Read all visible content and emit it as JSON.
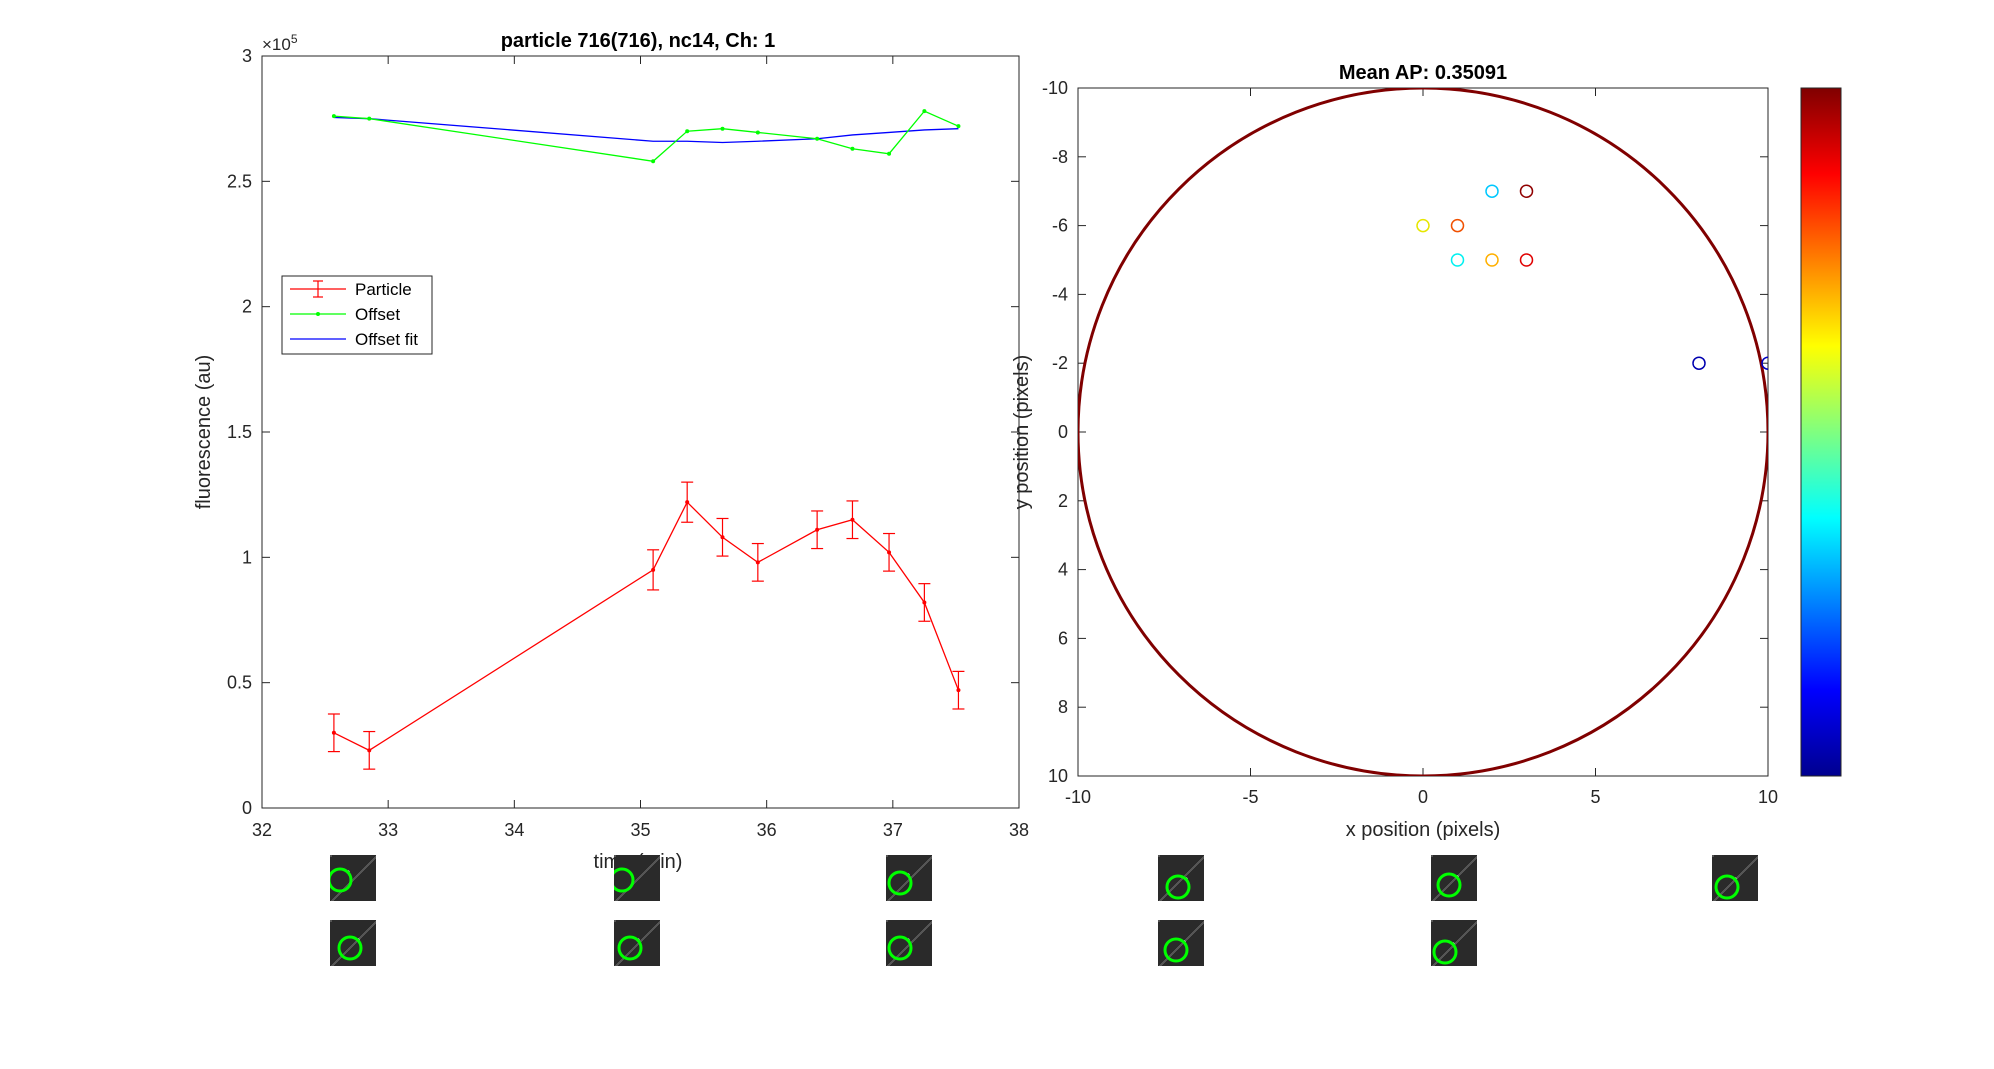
{
  "chart_data": [
    {
      "type": "line",
      "title": "particle 716(716), nc14, Ch: 1",
      "xlabel": "time (min)",
      "ylabel": "fluorescence (au)",
      "y_exponent_label": "×10",
      "y_exponent": "5",
      "xlim": [
        32,
        38
      ],
      "ylim": [
        0,
        300000
      ],
      "x_ticks": [
        32,
        33,
        34,
        35,
        36,
        37,
        38
      ],
      "y_ticks": [
        0,
        50000,
        100000,
        150000,
        200000,
        250000,
        300000
      ],
      "y_tick_labels": [
        "0",
        "0.5",
        "1",
        "1.5",
        "2",
        "2.5",
        "3"
      ],
      "legend_position": "left, mid-height",
      "series": [
        {
          "name": "Particle",
          "color": "#ff0000",
          "x": [
            32.57,
            32.85,
            35.1,
            35.37,
            35.65,
            35.93,
            36.4,
            36.68,
            36.97,
            37.25,
            37.52
          ],
          "y": [
            30000,
            23000,
            95000,
            122000,
            108000,
            98000,
            111000,
            115000,
            102000,
            82000,
            47000
          ],
          "error": [
            7500,
            7500,
            8000,
            8000,
            7500,
            7500,
            7500,
            7500,
            7500,
            7500,
            7500
          ]
        },
        {
          "name": "Offset",
          "color": "#00ff00",
          "x": [
            32.57,
            32.85,
            35.1,
            35.37,
            35.65,
            35.93,
            36.4,
            36.68,
            36.97,
            37.25,
            37.52
          ],
          "y": [
            276000,
            275000,
            258000,
            270000,
            271000,
            269500,
            267000,
            263000,
            261000,
            278000,
            272000
          ]
        },
        {
          "name": "Offset fit",
          "color": "#0000ff",
          "x": [
            32.57,
            32.85,
            35.1,
            35.37,
            35.65,
            35.93,
            36.4,
            36.68,
            36.97,
            37.25,
            37.52
          ],
          "y": [
            275500,
            275000,
            266000,
            266000,
            265500,
            266000,
            267000,
            268500,
            269500,
            270500,
            271000
          ]
        }
      ]
    },
    {
      "type": "scatter",
      "title": "Mean AP: 0.35091",
      "xlabel": "x position (pixels)",
      "ylabel": "y position (pixels)",
      "xlim": [
        -10,
        10
      ],
      "ylim": [
        -10,
        10
      ],
      "y_reversed": true,
      "x_ticks": [
        -10,
        -5,
        0,
        5,
        10
      ],
      "y_ticks": [
        -10,
        -8,
        -6,
        -4,
        -2,
        0,
        2,
        4,
        6,
        8,
        10
      ],
      "colormap": "jet",
      "circle": {
        "cx": 0,
        "cy": 0,
        "r": 10,
        "color": "#800000"
      },
      "points": [
        {
          "x": 2,
          "y": -7,
          "color": "#00c8ff"
        },
        {
          "x": 3,
          "y": -7,
          "color": "#900000"
        },
        {
          "x": 0,
          "y": -6,
          "color": "#e6e600"
        },
        {
          "x": 1,
          "y": -6,
          "color": "#f05000"
        },
        {
          "x": 1,
          "y": -5,
          "color": "#00f0f0"
        },
        {
          "x": 2,
          "y": -5,
          "color": "#ffb000"
        },
        {
          "x": 3,
          "y": -5,
          "color": "#e00000"
        },
        {
          "x": 8,
          "y": -2,
          "color": "#0000b0"
        },
        {
          "x": 10,
          "y": -2,
          "color": "#0000c0"
        }
      ]
    }
  ]
}
